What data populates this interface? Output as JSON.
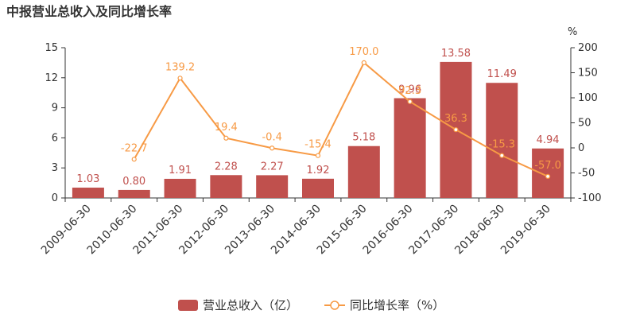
{
  "chart_data": {
    "type": "bar",
    "title": "中报营业总收入及同比增长率",
    "categories": [
      "2009-06-30",
      "2010-06-30",
      "2011-06-30",
      "2012-06-30",
      "2013-06-30",
      "2014-06-30",
      "2015-06-30",
      "2016-06-30",
      "2017-06-30",
      "2018-06-30",
      "2019-06-30"
    ],
    "series": [
      {
        "name": "营业总收入（亿）",
        "type": "bar",
        "axis": "left",
        "values": [
          1.03,
          0.8,
          1.91,
          2.28,
          2.27,
          1.92,
          5.18,
          9.96,
          13.58,
          11.49,
          4.94
        ],
        "labels": [
          "1.03",
          "0.80",
          "1.91",
          "2.28",
          "2.27",
          "1.92",
          "5.18",
          "9.96",
          "13.58",
          "11.49",
          "4.94"
        ]
      },
      {
        "name": "同比增长率（%）",
        "type": "line",
        "axis": "right",
        "values": [
          null,
          -22.7,
          139.2,
          19.4,
          -0.4,
          -15.4,
          170.0,
          92.3,
          36.3,
          -15.3,
          -57.0
        ],
        "labels": [
          "",
          "-22.7",
          "139.2",
          "19.4",
          "-0.4",
          "-15.4",
          "170.0",
          "92.3",
          "36.3",
          "-15.3",
          "-57.0"
        ]
      }
    ],
    "y_left": {
      "min": 0,
      "max": 15,
      "ticks": [
        "0",
        "3",
        "6",
        "9",
        "12",
        "15"
      ]
    },
    "y_right": {
      "min": -100,
      "max": 200,
      "unit": "%",
      "ticks": [
        "-100",
        "-50",
        "0",
        "50",
        "100",
        "150",
        "200"
      ]
    },
    "grid": false,
    "legend": "bottom-center",
    "colors": {
      "bar": "#c0504d",
      "line": "#f79a45",
      "text": "#333333",
      "axis": "#333333"
    }
  }
}
